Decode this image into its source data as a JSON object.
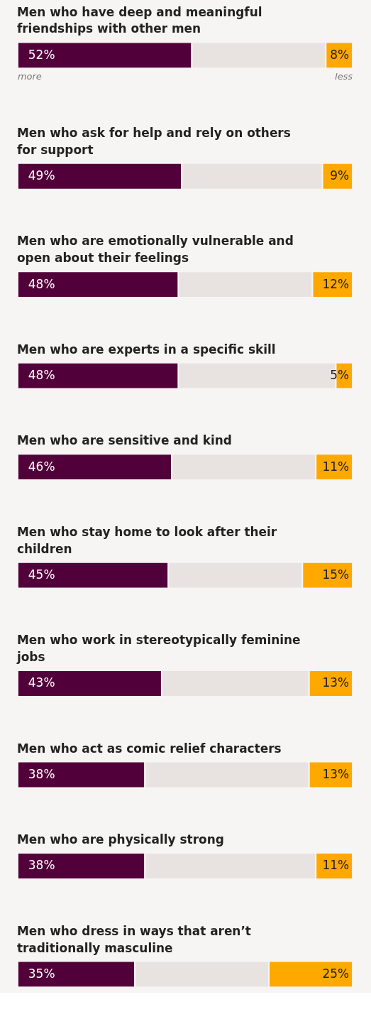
{
  "chart_data": {
    "type": "bar",
    "orientation": "horizontal",
    "stacked": true,
    "categories": [
      "Men who have deep and meaningful friendships with other men",
      "Men who ask for help and rely on others for support",
      "Men who are emotionally vulnerable and open about their feelings",
      "Men who are experts in a specific skill",
      "Men who are sensitive and kind",
      "Men who stay home to look after their children",
      "Men who work in stereotypically feminine jobs",
      "Men who act as comic relief characters",
      "Men who are physically strong",
      "Men who dress in ways that aren’t traditionally masculine"
    ],
    "series": [
      {
        "color": "#52003a",
        "values": [
          52,
          49,
          48,
          48,
          46,
          45,
          43,
          38,
          38,
          35
        ],
        "value_labels": [
          "52%",
          "49%",
          "48%",
          "48%",
          "46%",
          "45%",
          "43%",
          "38%",
          "38%",
          "35%"
        ]
      },
      {
        "color": "#e8e2e0",
        "values": [
          40,
          42,
          40,
          47,
          43,
          40,
          44,
          49,
          51,
          40
        ]
      },
      {
        "color": "#ffa800",
        "values": [
          8,
          9,
          12,
          5,
          11,
          15,
          13,
          13,
          11,
          25
        ],
        "value_labels": [
          "8%",
          "9%",
          "12%",
          "5%",
          "11%",
          "15%",
          "13%",
          "13%",
          "11%",
          "25%"
        ]
      }
    ],
    "xlim": [
      0,
      100
    ],
    "tick_labels": false,
    "legend": false,
    "annotations": [
      "more",
      "less"
    ]
  }
}
